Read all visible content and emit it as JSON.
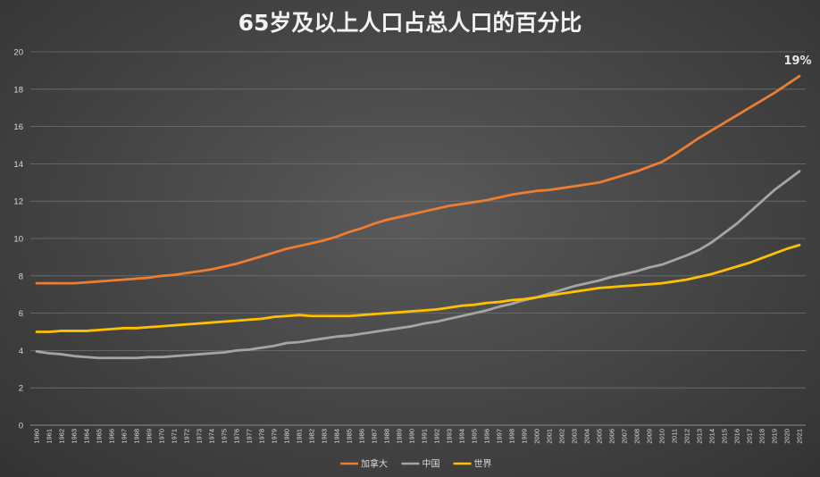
{
  "chart_data": {
    "type": "line",
    "title": "65岁及以上人口占总人口的百分比",
    "ylim": [
      0,
      20
    ],
    "yticks": [
      0,
      2,
      4,
      6,
      8,
      10,
      12,
      14,
      16,
      18,
      20
    ],
    "grid": "horizontal",
    "legend_position": "bottom",
    "x": [
      "1960",
      "1961",
      "1962",
      "1963",
      "1964",
      "1965",
      "1966",
      "1967",
      "1968",
      "1969",
      "1970",
      "1971",
      "1972",
      "1973",
      "1974",
      "1975",
      "1976",
      "1977",
      "1978",
      "1979",
      "1980",
      "1981",
      "1982",
      "1983",
      "1984",
      "1985",
      "1986",
      "1987",
      "1988",
      "1989",
      "1990",
      "1991",
      "1992",
      "1993",
      "1994",
      "1995",
      "1996",
      "1997",
      "1998",
      "1999",
      "2000",
      "2001",
      "2002",
      "2003",
      "2004",
      "2005",
      "2006",
      "2007",
      "2008",
      "2009",
      "2010",
      "2011",
      "2012",
      "2013",
      "2014",
      "2015",
      "2016",
      "2017",
      "2018",
      "2019",
      "2020",
      "2021"
    ],
    "series": [
      {
        "name": "加拿大",
        "color": "#ed7d31",
        "values": [
          7.6,
          7.6,
          7.6,
          7.6,
          7.65,
          7.7,
          7.75,
          7.8,
          7.85,
          7.9,
          8.0,
          8.05,
          8.15,
          8.25,
          8.35,
          8.5,
          8.65,
          8.85,
          9.05,
          9.25,
          9.45,
          9.6,
          9.75,
          9.9,
          10.1,
          10.35,
          10.55,
          10.8,
          11.0,
          11.15,
          11.3,
          11.45,
          11.6,
          11.75,
          11.85,
          11.95,
          12.05,
          12.2,
          12.35,
          12.45,
          12.55,
          12.6,
          12.7,
          12.8,
          12.9,
          13.0,
          13.2,
          13.4,
          13.6,
          13.85,
          14.1,
          14.5,
          14.95,
          15.4,
          15.8,
          16.2,
          16.6,
          17.0,
          17.4,
          17.8,
          18.25,
          18.7
        ]
      },
      {
        "name": "中国",
        "color": "#a5a5a5",
        "values": [
          3.95,
          3.85,
          3.8,
          3.7,
          3.65,
          3.6,
          3.6,
          3.6,
          3.6,
          3.65,
          3.65,
          3.7,
          3.75,
          3.8,
          3.85,
          3.9,
          4.0,
          4.05,
          4.15,
          4.25,
          4.4,
          4.45,
          4.55,
          4.65,
          4.75,
          4.8,
          4.9,
          5.0,
          5.1,
          5.2,
          5.3,
          5.45,
          5.55,
          5.7,
          5.85,
          6.0,
          6.15,
          6.35,
          6.5,
          6.7,
          6.85,
          7.05,
          7.25,
          7.45,
          7.6,
          7.75,
          7.95,
          8.1,
          8.25,
          8.45,
          8.6,
          8.85,
          9.1,
          9.4,
          9.8,
          10.3,
          10.8,
          11.4,
          12.0,
          12.6,
          13.1,
          13.6
        ]
      },
      {
        "name": "世界",
        "color": "#ffc000",
        "values": [
          5.0,
          5.0,
          5.05,
          5.05,
          5.05,
          5.1,
          5.15,
          5.2,
          5.2,
          5.25,
          5.3,
          5.35,
          5.4,
          5.45,
          5.5,
          5.55,
          5.6,
          5.65,
          5.7,
          5.8,
          5.85,
          5.9,
          5.85,
          5.85,
          5.85,
          5.85,
          5.9,
          5.95,
          6.0,
          6.05,
          6.1,
          6.15,
          6.2,
          6.3,
          6.4,
          6.45,
          6.55,
          6.6,
          6.7,
          6.75,
          6.85,
          6.95,
          7.05,
          7.15,
          7.25,
          7.35,
          7.4,
          7.45,
          7.5,
          7.55,
          7.6,
          7.7,
          7.8,
          7.95,
          8.1,
          8.3,
          8.5,
          8.7,
          8.95,
          9.2,
          9.45,
          9.65
        ]
      }
    ],
    "annotations": [
      {
        "series": "加拿大",
        "x": "2021",
        "text": "19%"
      }
    ]
  }
}
